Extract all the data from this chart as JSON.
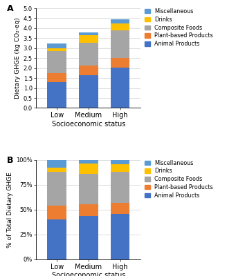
{
  "categories": [
    "Low",
    "Medium",
    "High"
  ],
  "series": {
    "Animal Products": [
      1.3,
      1.65,
      2.02
    ],
    "Plant-based Products": [
      0.45,
      0.46,
      0.5
    ],
    "Composite Foods": [
      1.1,
      1.15,
      1.38
    ],
    "Drinks": [
      0.15,
      0.38,
      0.35
    ],
    "Miscellaneous": [
      0.25,
      0.14,
      0.2
    ]
  },
  "series_pct": {
    "Animal Products": [
      40.0,
      43.5,
      45.5
    ],
    "Plant-based Products": [
      13.8,
      12.1,
      11.2
    ],
    "Composite Foods": [
      33.8,
      30.3,
      31.0
    ],
    "Drinks": [
      4.6,
      10.0,
      7.9
    ],
    "Miscellaneous": [
      7.7,
      3.7,
      4.5
    ]
  },
  "colors": {
    "Animal Products": "#4472C4",
    "Plant-based Products": "#ED7D31",
    "Composite Foods": "#A5A5A5",
    "Drinks": "#FFC000",
    "Miscellaneous": "#5B9BD5"
  },
  "legend_order": [
    "Miscellaneous",
    "Drinks",
    "Composite Foods",
    "Plant-based Products",
    "Animal Products"
  ],
  "ylabel_A": "Dietary GHGE (kg CO₂-eq)",
  "ylabel_B": "% of Total Dietary GHGE",
  "xlabel": "Socioeconomic status",
  "ylim_A": [
    0,
    5.0
  ],
  "yticks_A": [
    0.0,
    0.5,
    1.0,
    1.5,
    2.0,
    2.5,
    3.0,
    3.5,
    4.0,
    4.5,
    5.0
  ],
  "yticks_B": [
    0,
    25,
    50,
    75,
    100
  ],
  "ytick_labels_B": [
    "0%",
    "25%",
    "50%",
    "75%",
    "100%"
  ],
  "label_A": "A",
  "label_B": "B",
  "bar_width": 0.6,
  "background_color": "#FFFFFF"
}
